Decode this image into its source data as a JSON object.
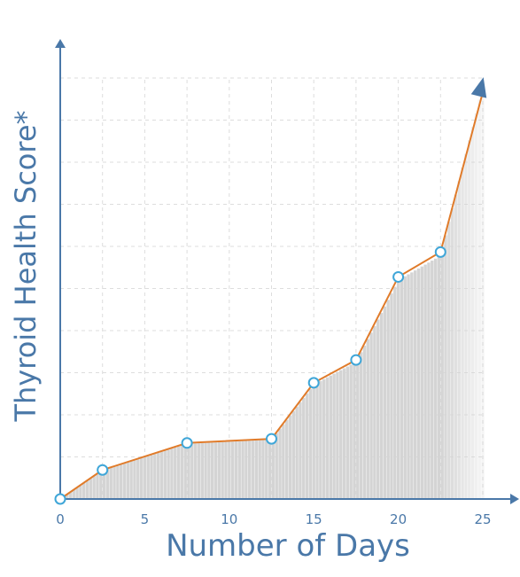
{
  "chart_data": {
    "type": "line",
    "title": "",
    "xlabel": "Number of Days",
    "ylabel": "Thyroid Health Score*",
    "xlim": [
      0,
      25
    ],
    "x_ticks": [
      "0",
      "5",
      "10",
      "15",
      "20",
      "25"
    ],
    "y_tick_labels": false,
    "grid": true,
    "series": [
      {
        "x": [
          0,
          2.5,
          7.5,
          12.5,
          15,
          17.5,
          20,
          22.5,
          25
        ],
        "y": [
          0,
          0.7,
          1.35,
          1.45,
          2.8,
          3.35,
          5.35,
          5.95,
          10.1
        ]
      }
    ],
    "colors": {
      "line": "#e07b2a",
      "marker_stroke": "#3fa6d8",
      "axis": "#4a78a8",
      "bars": "#d4d4d4",
      "grid": "#dddddd"
    }
  }
}
